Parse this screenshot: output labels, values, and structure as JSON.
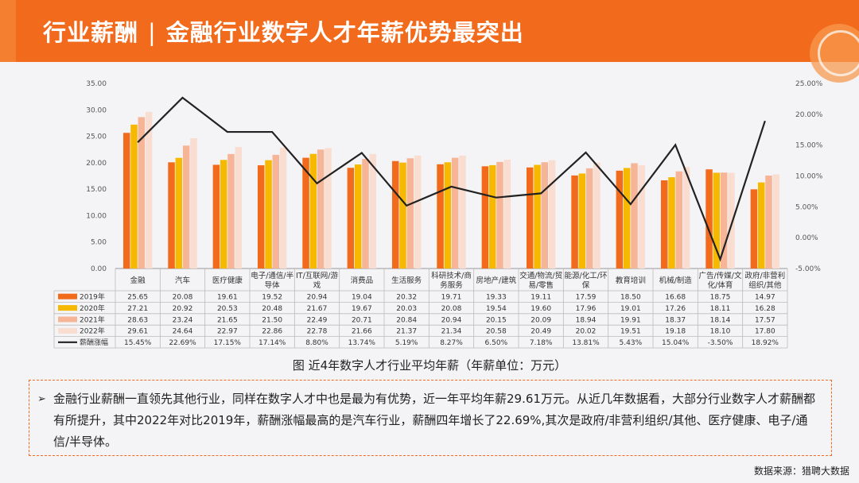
{
  "header": {
    "title_left": "行业薪酬",
    "separator": "|",
    "title_right": "金融行业数字人才年薪优势最突出"
  },
  "chart_data": {
    "type": "bar",
    "categories": [
      "金融",
      "汽车",
      "医疗健康",
      "电子/通信/半导体",
      "IT/互联网/游戏",
      "消费品",
      "生活服务",
      "科研技术/商务服务",
      "房地产/建筑",
      "交通/物流/贸易/零售",
      "能源/化工/环保",
      "教育培训",
      "机械/制造",
      "广告/传媒/文化/体育",
      "政府/非营利组织/其他"
    ],
    "category_lines": [
      [
        "金融"
      ],
      [
        "汽车"
      ],
      [
        "医疗健康"
      ],
      [
        "电子/通信/半",
        "导体"
      ],
      [
        "IT/互联网/游",
        "戏"
      ],
      [
        "消费品"
      ],
      [
        "生活服务"
      ],
      [
        "科研技术/商",
        "务服务"
      ],
      [
        "房地产/建筑"
      ],
      [
        "交通/物流/贸",
        "易/零售"
      ],
      [
        "能源/化工/环",
        "保"
      ],
      [
        "教育培训"
      ],
      [
        "机械/制造"
      ],
      [
        "广告/传媒/文",
        "化/体育"
      ],
      [
        "政府/非营利",
        "组织/其他"
      ]
    ],
    "series": [
      {
        "name": "2019年",
        "color": "#f26a1b",
        "values": [
          25.65,
          20.08,
          19.61,
          19.52,
          20.94,
          19.04,
          20.32,
          19.71,
          19.33,
          19.11,
          17.59,
          18.5,
          16.68,
          18.75,
          14.97
        ],
        "labels": [
          "25.65",
          "20.08",
          "19.61",
          "19.52",
          "20.94",
          "19.04",
          "20.32",
          "19.71",
          "19.33",
          "19.11",
          "17.59",
          "18.50",
          "16.68",
          "18.75",
          "14.97"
        ]
      },
      {
        "name": "2020年",
        "color": "#f6b900",
        "values": [
          27.21,
          20.92,
          20.53,
          20.48,
          21.67,
          19.67,
          20.03,
          20.08,
          19.54,
          19.6,
          17.96,
          19.01,
          17.26,
          18.11,
          16.28
        ],
        "labels": [
          "27.21",
          "20.92",
          "20.53",
          "20.48",
          "21.67",
          "19.67",
          "20.03",
          "20.08",
          "19.54",
          "19.60",
          "17.96",
          "19.01",
          "17.26",
          "18.11",
          "16.28"
        ]
      },
      {
        "name": "2021年",
        "color": "#f5b596",
        "values": [
          28.63,
          23.24,
          21.65,
          21.5,
          22.49,
          20.71,
          20.84,
          20.94,
          20.15,
          20.09,
          18.94,
          19.91,
          18.37,
          18.14,
          17.57
        ],
        "labels": [
          "28.63",
          "23.24",
          "21.65",
          "21.50",
          "22.49",
          "20.71",
          "20.84",
          "20.94",
          "20.15",
          "20.09",
          "18.94",
          "19.91",
          "18.37",
          "18.14",
          "17.57"
        ]
      },
      {
        "name": "2022年",
        "color": "#f8ddd0",
        "values": [
          29.61,
          24.64,
          22.97,
          22.86,
          22.78,
          21.66,
          21.37,
          21.34,
          20.58,
          20.49,
          20.02,
          19.51,
          19.18,
          18.1,
          17.8
        ],
        "labels": [
          "29.61",
          "24.64",
          "22.97",
          "22.86",
          "22.78",
          "21.66",
          "21.37",
          "21.34",
          "20.58",
          "20.49",
          "20.02",
          "19.51",
          "19.18",
          "18.10",
          "17.80"
        ]
      }
    ],
    "line_series": {
      "name": "薪酬涨幅",
      "color": "#222222",
      "values": [
        15.45,
        22.69,
        17.15,
        17.14,
        8.8,
        13.74,
        5.19,
        8.27,
        6.5,
        7.18,
        13.81,
        5.43,
        15.04,
        -3.5,
        18.92
      ],
      "labels": [
        "15.45%",
        "22.69%",
        "17.15%",
        "17.14%",
        "8.80%",
        "13.74%",
        "5.19%",
        "8.27%",
        "6.50%",
        "7.18%",
        "13.81%",
        "5.43%",
        "15.04%",
        "-3.50%",
        "18.92%"
      ]
    },
    "ylim": [
      0,
      35
    ],
    "y_ticks": [
      "0.00",
      "5.00",
      "10.00",
      "15.00",
      "20.00",
      "25.00",
      "30.00",
      "35.00"
    ],
    "y2lim": [
      -5,
      25
    ],
    "y2_ticks": [
      "-5.00%",
      "0.00%",
      "5.00%",
      "10.00%",
      "15.00%",
      "20.00%",
      "25.00%"
    ],
    "legend_placement": "data-table"
  },
  "caption": "图 近4年数字人才行业平均年薪（年薪单位：万元）",
  "note": {
    "bullet": "➢",
    "text": "金融行业薪酬一直领先其他行业，同样在数字人才中也是最为有优势，近一年平均年薪29.61万元。从近几年数据看，大部分行业数字人才薪酬都有所提升，其中2022年对比2019年，薪酬涨幅最高的是汽车行业，薪酬四年增长了22.69%,其次是政府/非营利组织/其他、医疗健康、电子/通信/半导体。"
  },
  "source": "数据来源：猎聘大数据"
}
